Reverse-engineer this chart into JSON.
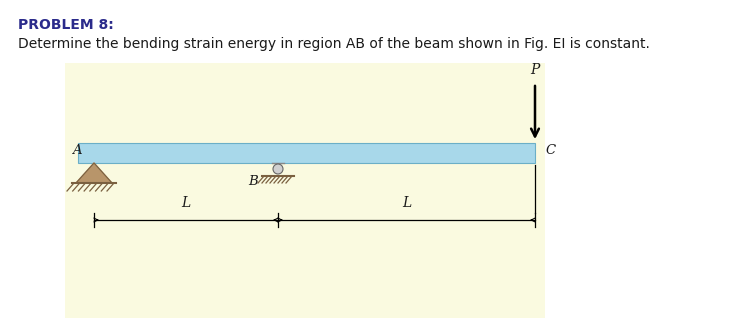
{
  "title_line1": "PROBLEM 8:",
  "title_line2": "Determine the bending strain energy in region AB of the beam shown in Fig. EI is constant.",
  "title_color": "#1a1a1a",
  "title1_color": "#2b2b8b",
  "bg_color": "#ffffff",
  "panel_bg": "#fafae0",
  "beam_color": "#a8d8ea",
  "beam_edge_color": "#6bafc7",
  "label_A": "A",
  "label_B": "B",
  "label_C": "C",
  "label_P": "P",
  "label_L": "L",
  "font_size_title1": 10,
  "font_size_title2": 10,
  "font_size_label": 9.5
}
